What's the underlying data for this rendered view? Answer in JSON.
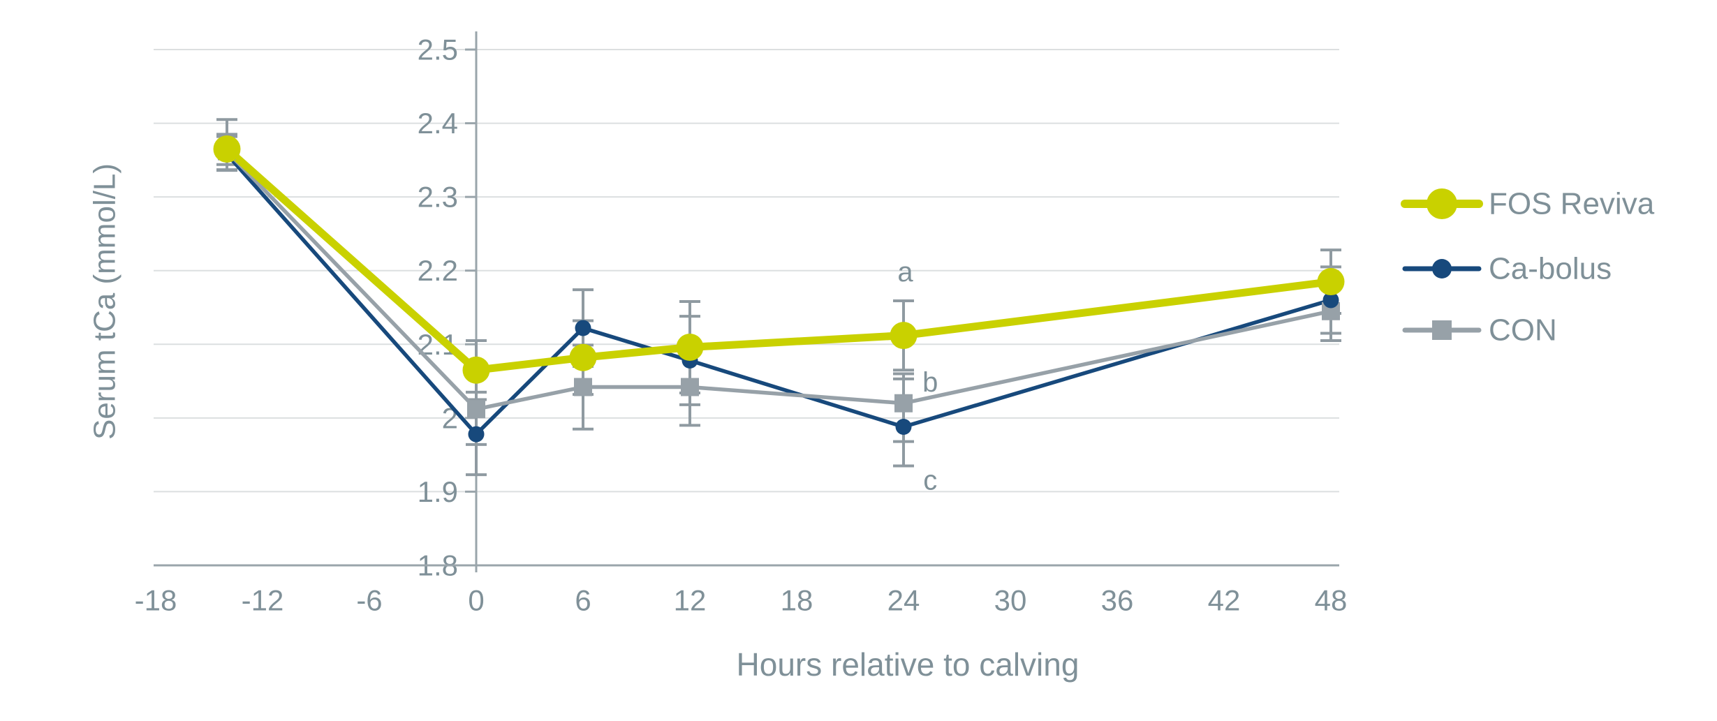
{
  "chart_data": {
    "type": "line",
    "title": "",
    "xlabel": "Hours relative to calving",
    "ylabel": "Serum tCa (mmol/L)",
    "x_tick_labels": [
      "-18",
      "-12",
      "-6",
      "0",
      "6",
      "12",
      "18",
      "24",
      "30",
      "36",
      "42",
      "48"
    ],
    "x_tick_values": [
      -18,
      -12,
      -6,
      0,
      6,
      12,
      18,
      24,
      30,
      36,
      42,
      48
    ],
    "y_tick_labels": [
      "2.5",
      "2.4",
      "2.3",
      "2.2",
      "2.1",
      "2",
      "1.9",
      "1.8"
    ],
    "y_tick_values": [
      2.5,
      2.4,
      2.3,
      2.2,
      2.1,
      2.0,
      1.9,
      1.8
    ],
    "ylim": [
      1.8,
      2.5
    ],
    "xlim": [
      -20.2,
      48.5
    ],
    "grid": "horizontal",
    "legend_position": "right",
    "x": [
      -14,
      0,
      6,
      12,
      24,
      48
    ],
    "series": [
      {
        "name": "FOS Reviva",
        "color": "#c9d100",
        "marker": "circle",
        "values": [
          2.365,
          2.065,
          2.082,
          2.096,
          2.112,
          2.185
        ],
        "err_plus": [
          0.04,
          0.04,
          0.05,
          0.062,
          0.047,
          0.043
        ],
        "err_minus": [
          0.028,
          0.04,
          0.05,
          0.062,
          0.047,
          0.043
        ]
      },
      {
        "name": "Ca-bolus",
        "color": "#17497c",
        "marker": "circle",
        "values": [
          2.358,
          1.978,
          2.122,
          2.078,
          1.988,
          2.16
        ],
        "err_plus": [
          0.027,
          0.057,
          0.052,
          0.06,
          0.065,
          0.045
        ],
        "err_minus": [
          0.022,
          0.055,
          0.052,
          0.06,
          0.053,
          0.045
        ]
      },
      {
        "name": "CON",
        "color": "#97a1a8",
        "marker": "square",
        "values": [
          2.362,
          2.012,
          2.042,
          2.042,
          2.02,
          2.145
        ],
        "err_plus": [
          0.02,
          0.048,
          0.057,
          0.052,
          0.04,
          0.04
        ],
        "err_minus": [
          0.018,
          0.048,
          0.057,
          0.052,
          0.052,
          0.04
        ]
      }
    ],
    "annotations": [
      {
        "text": "a",
        "x": 24.1,
        "y": 2.198
      },
      {
        "text": "b",
        "x": 25.5,
        "y": 2.048
      },
      {
        "text": "c",
        "x": 25.5,
        "y": 1.915
      }
    ],
    "error_bar_color": "#8f9aa1",
    "text_color": "#7f9098",
    "gridline_color": "#dcdfe0",
    "axis_color": "#9aa5ab"
  }
}
